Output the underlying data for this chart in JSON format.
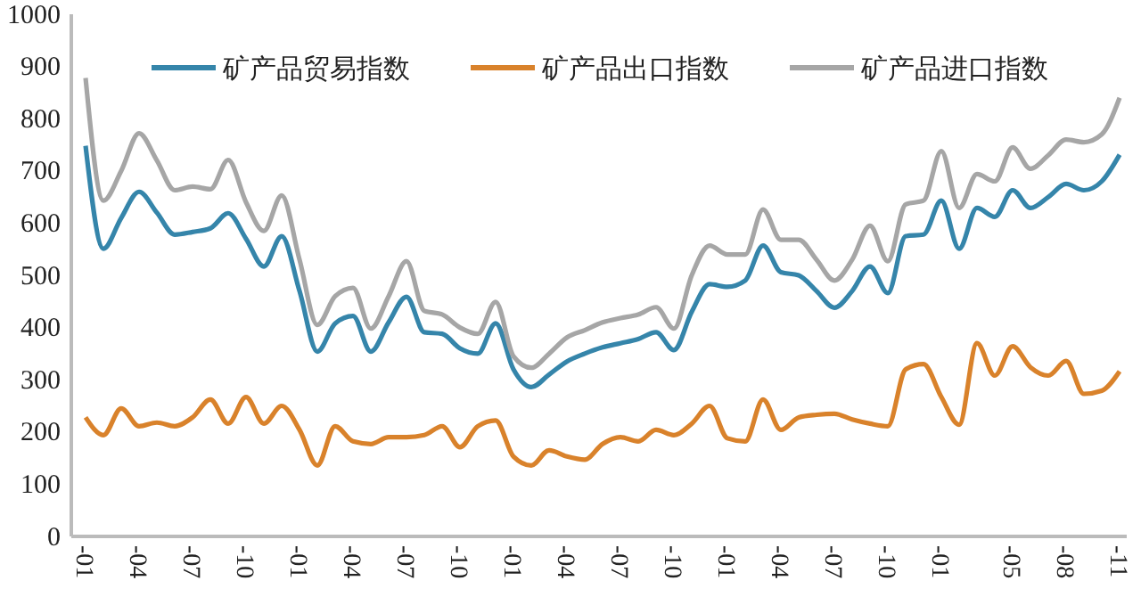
{
  "chart_data": {
    "type": "line",
    "categories": [
      "-01",
      null,
      null,
      "-04",
      null,
      null,
      "-07",
      null,
      null,
      "-10",
      null,
      null,
      "-01",
      null,
      null,
      "-04",
      null,
      null,
      "-07",
      null,
      null,
      "-10",
      null,
      null,
      "-01",
      null,
      null,
      "-04",
      null,
      null,
      "-07",
      null,
      null,
      "-10",
      null,
      null,
      "-01",
      null,
      null,
      "-04",
      null,
      null,
      "-07",
      null,
      null,
      "-10",
      null,
      null,
      "-01",
      null,
      null,
      null,
      "-05",
      null,
      null,
      "-08",
      null,
      null,
      "-11"
    ],
    "series": [
      {
        "name": "矿产品贸易指数",
        "color": "#3585aa",
        "values": [
          748,
          551,
          610,
          660,
          620,
          578,
          583,
          590,
          619,
          570,
          517,
          575,
          470,
          354,
          408,
          422,
          354,
          410,
          459,
          391,
          388,
          360,
          350,
          408,
          320,
          286,
          310,
          335,
          350,
          362,
          370,
          378,
          391,
          357,
          430,
          483,
          478,
          490,
          557,
          506,
          500,
          470,
          438,
          470,
          517,
          466,
          575,
          578,
          643,
          551,
          629,
          612,
          663,
          629,
          650,
          675,
          663,
          680,
          731
        ]
      },
      {
        "name": "矿产品出口指数",
        "color": "#d9822b",
        "values": [
          228,
          194,
          245,
          211,
          218,
          211,
          228,
          262,
          216,
          267,
          216,
          250,
          204,
          136,
          211,
          182,
          177,
          190,
          190,
          194,
          211,
          171,
          211,
          222,
          153,
          136,
          165,
          153,
          147,
          177,
          190,
          182,
          204,
          194,
          216,
          250,
          188,
          182,
          262,
          204,
          228,
          233,
          235,
          224,
          216,
          211,
          320,
          330,
          267,
          214,
          370,
          308,
          364,
          324,
          308,
          336,
          273,
          279,
          316
        ]
      },
      {
        "name": "矿产品进口指数",
        "color": "#a6a6a6",
        "values": [
          878,
          643,
          700,
          772,
          720,
          663,
          670,
          665,
          721,
          640,
          585,
          653,
          530,
          405,
          460,
          476,
          398,
          460,
          527,
          432,
          425,
          400,
          388,
          449,
          345,
          323,
          350,
          381,
          395,
          410,
          418,
          425,
          439,
          398,
          500,
          557,
          540,
          540,
          626,
          568,
          568,
          530,
          490,
          530,
          595,
          527,
          636,
          643,
          738,
          629,
          694,
          680,
          745,
          704,
          730,
          760,
          755,
          770,
          840
        ]
      }
    ],
    "ylim": [
      0,
      1000
    ],
    "yticks": [
      0,
      100,
      200,
      300,
      400,
      500,
      600,
      700,
      800,
      900,
      1000
    ],
    "grid": false,
    "legend": "top",
    "marker": "none",
    "line_style": "solid"
  }
}
